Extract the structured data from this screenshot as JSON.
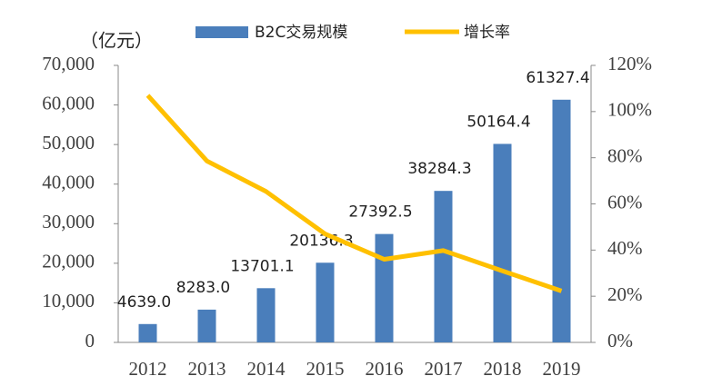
{
  "chart_data": {
    "type": "bar",
    "y_label": "（亿元）",
    "categories": [
      "2012",
      "2013",
      "2014",
      "2015",
      "2016",
      "2017",
      "2018",
      "2019"
    ],
    "series": [
      {
        "name": "B2C交易规模",
        "type": "bar",
        "color": "#4a7ebb",
        "values": [
          4639.0,
          8283.0,
          13701.1,
          20136.3,
          27392.5,
          38284.3,
          50164.4,
          61327.4
        ],
        "value_labels": [
          "4639.0",
          "8283.0",
          "13701.1",
          "20136.3",
          "27392.5",
          "38284.3",
          "50164.4",
          "61327.4"
        ]
      },
      {
        "name": "增长率",
        "type": "line",
        "axis": "y2",
        "color": "#ffc000",
        "values": [
          107,
          78.6,
          65.4,
          47.0,
          36.0,
          39.8,
          31.0,
          22.3
        ]
      }
    ],
    "ylim": [
      0,
      70000
    ],
    "yticks": [
      0,
      {
        "value": 10000,
        "label": "10,000"
      },
      {
        "value": 20000,
        "label": "20,000"
      },
      {
        "value": 30000,
        "label": "30,000"
      },
      {
        "value": 40000,
        "label": "40,000"
      },
      {
        "value": 50000,
        "label": "50,000"
      },
      {
        "value": 60000,
        "label": "60,000"
      },
      {
        "value": 70000,
        "label": "70,000"
      }
    ],
    "y2lim": [
      0,
      120
    ],
    "y2ticks": [
      {
        "value": 0,
        "label": "0%"
      },
      {
        "value": 20,
        "label": "20%"
      },
      {
        "value": 40,
        "label": "40%"
      },
      {
        "value": 60,
        "label": "60%"
      },
      {
        "value": 80,
        "label": "80%"
      },
      {
        "value": 100,
        "label": "100%"
      },
      {
        "value": 120,
        "label": "120%"
      }
    ],
    "legend": "top"
  }
}
